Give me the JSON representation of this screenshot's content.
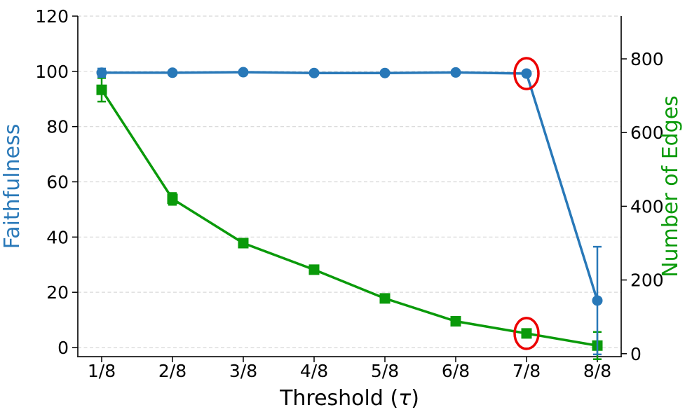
{
  "figure": {
    "background": "#ffffff"
  },
  "chart_data": {
    "type": "line",
    "xlabel": "Threshold (τ)",
    "categories": [
      "1/8",
      "2/8",
      "3/8",
      "4/8",
      "5/8",
      "6/8",
      "7/8",
      "8/8"
    ],
    "left_axis": {
      "label": "Faithfulness",
      "color": "#2878b8",
      "ticks": [
        0,
        20,
        40,
        60,
        80,
        100,
        120
      ],
      "range": [
        -3.3,
        120
      ]
    },
    "right_axis": {
      "label": "Number of Edges",
      "color": "#0a9a0a",
      "ticks": [
        0,
        200,
        400,
        600,
        800
      ],
      "range": [
        -8,
        916
      ]
    },
    "series": [
      {
        "name": "Number of Edges",
        "axis": "right",
        "color": "#0a9a0a",
        "marker": "square",
        "values": [
          716,
          420,
          300,
          228,
          150,
          88,
          55,
          22
        ],
        "errors": [
          32,
          16,
          0,
          0,
          0,
          0,
          0,
          37
        ]
      },
      {
        "name": "Faithfulness",
        "axis": "left",
        "color": "#2878b8",
        "marker": "circle",
        "values": [
          99.5,
          99.5,
          99.7,
          99.4,
          99.4,
          99.6,
          99.2,
          17
        ],
        "errors": [
          1.5,
          0,
          0,
          0,
          0,
          0,
          0,
          19.5
        ]
      }
    ],
    "highlights": [
      {
        "series_name": "Faithfulness",
        "category": "7/8"
      },
      {
        "series_name": "Number of Edges",
        "category": "7/8"
      }
    ],
    "highlight_color": "#ec0000",
    "grid": {
      "show": true,
      "color": "#d8d8d8",
      "dash": "5 3.5"
    },
    "tick_color": "#000000",
    "spine_color": "#1a1a1a"
  }
}
